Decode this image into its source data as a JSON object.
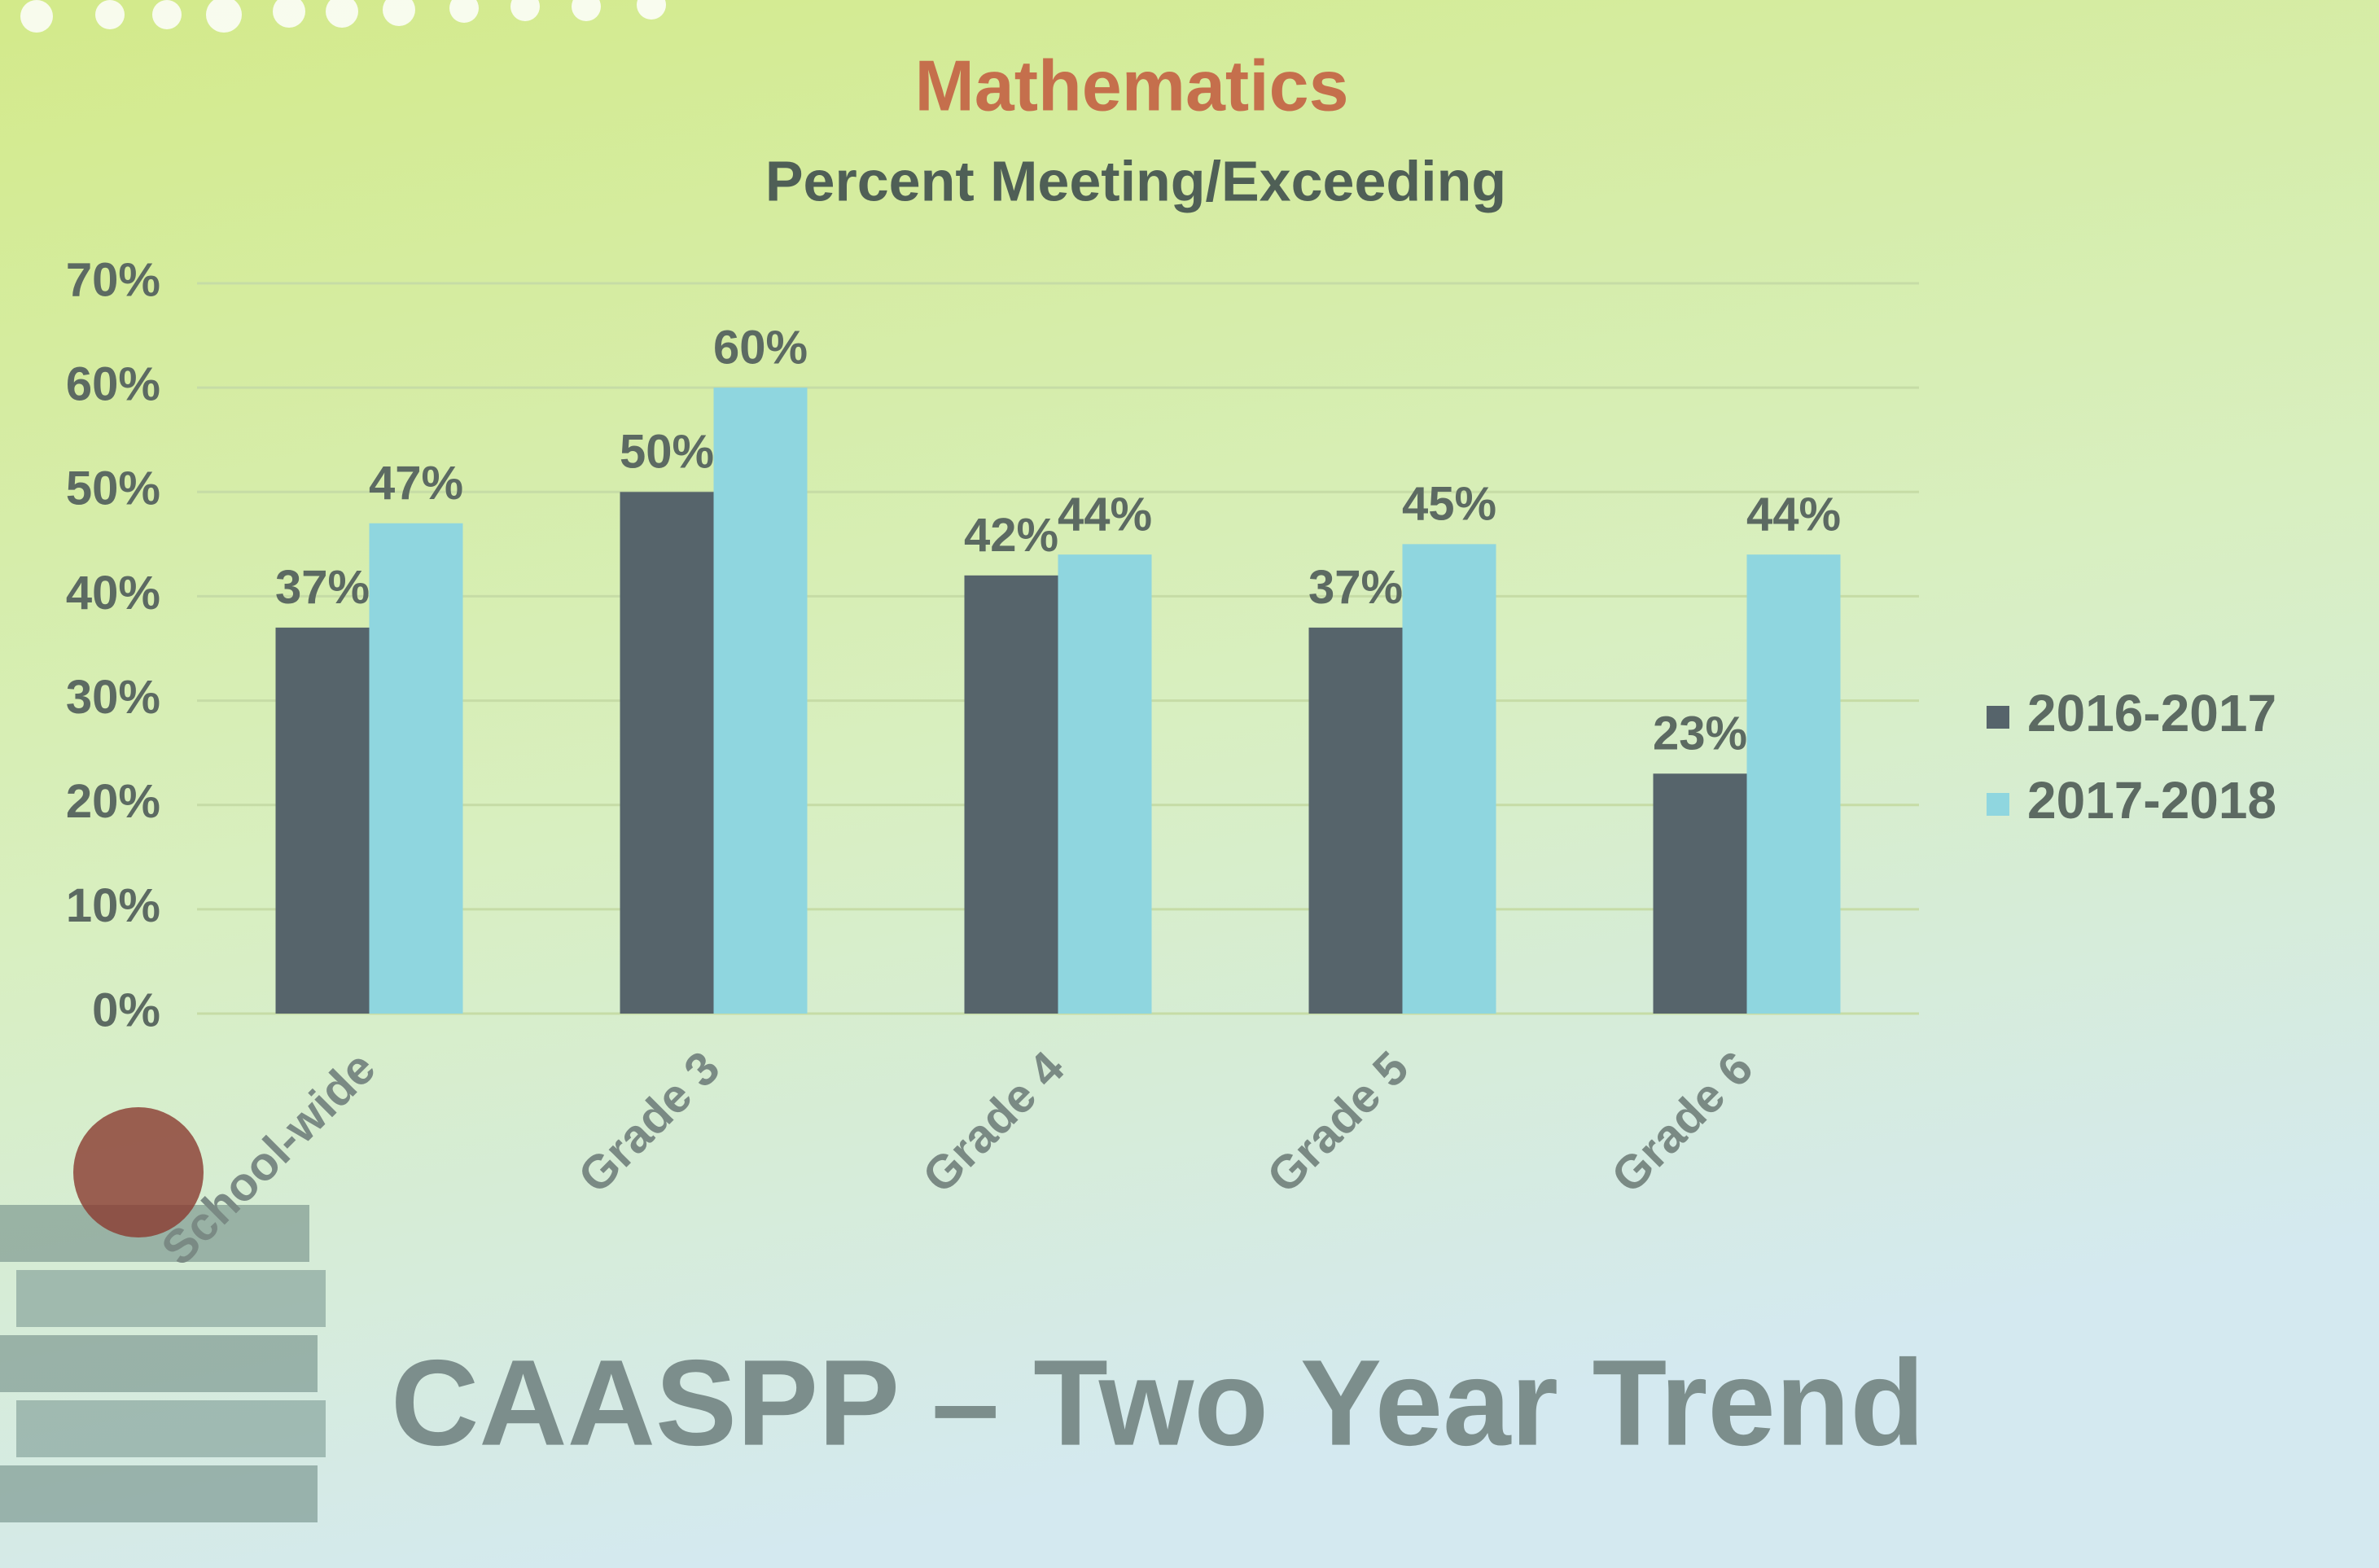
{
  "chart_data": {
    "type": "bar",
    "title": "Mathematics",
    "subtitle": "Percent Meeting/Exceeding",
    "categories": [
      "School-wide",
      "Grade 3",
      "Grade 4",
      "Grade 5",
      "Grade 6"
    ],
    "series": [
      {
        "name": "2016-2017",
        "color": "#56646b",
        "values": [
          37,
          50,
          42,
          37,
          23
        ],
        "value_labels": [
          "37%",
          "50%",
          "42%",
          "37%",
          "23%"
        ]
      },
      {
        "name": "2017-2018",
        "color": "#8fd6df",
        "values": [
          47,
          60,
          44,
          45,
          44
        ],
        "value_labels": [
          "47%",
          "60%",
          "44%",
          "45%",
          "44%"
        ]
      }
    ],
    "ylim": [
      0,
      70
    ],
    "yticks": [
      {
        "value": 0,
        "label": "0%"
      },
      {
        "value": 10,
        "label": "10%"
      },
      {
        "value": 20,
        "label": "20%"
      },
      {
        "value": 30,
        "label": "30%"
      },
      {
        "value": 40,
        "label": "40%"
      },
      {
        "value": 50,
        "label": "50%"
      },
      {
        "value": 60,
        "label": "60%"
      },
      {
        "value": 70,
        "label": "70%"
      }
    ],
    "grid": true,
    "legend": "right"
  },
  "slide": {
    "heading": "CAASPP – Two Year Trend"
  }
}
